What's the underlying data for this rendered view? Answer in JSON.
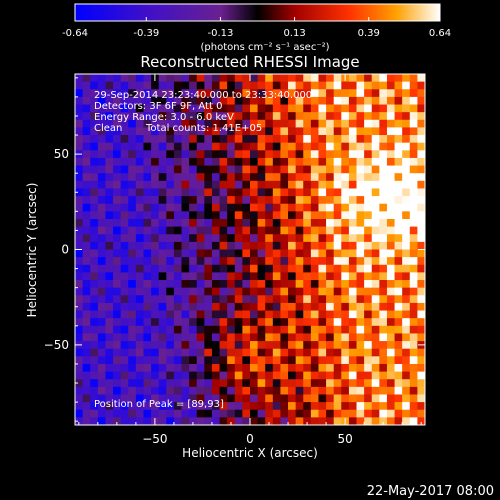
{
  "chart_data": {
    "type": "heatmap",
    "title": "Reconstructed RHESSI Image",
    "xlabel": "Heliocentric X (arcsec)",
    "ylabel": "Heliocentric Y (arcsec)",
    "xlim": [
      -92,
      92
    ],
    "ylim": [
      -92,
      92
    ],
    "x_ticks": [
      -50,
      0,
      50
    ],
    "y_ticks": [
      -50,
      0,
      50
    ],
    "colorbar": {
      "range": [
        -0.64,
        0.64
      ],
      "ticks": [
        "-0.64",
        "-0.39",
        "-0.13",
        "0.13",
        "0.39",
        "0.64"
      ],
      "unit_label": "(photons cm⁻² s⁻¹ asec⁻²)",
      "colormap": "rainbow-to-hot"
    },
    "annotations": {
      "time_range": "29-Sep-2014 23:23:40.000 to 23:33:40.000",
      "detectors": "Detectors: 3F 6F 9F, Att 0",
      "energy": "Energy Range: 3.0 - 6.0 keV",
      "method": "Clean",
      "total_counts": "Total counts: 1.41E+05",
      "peak": "Position of Peak = [89,93]"
    },
    "peak_position": [
      89,
      93
    ],
    "grid": false
  },
  "footer_date": "22-May-2017 08:00"
}
